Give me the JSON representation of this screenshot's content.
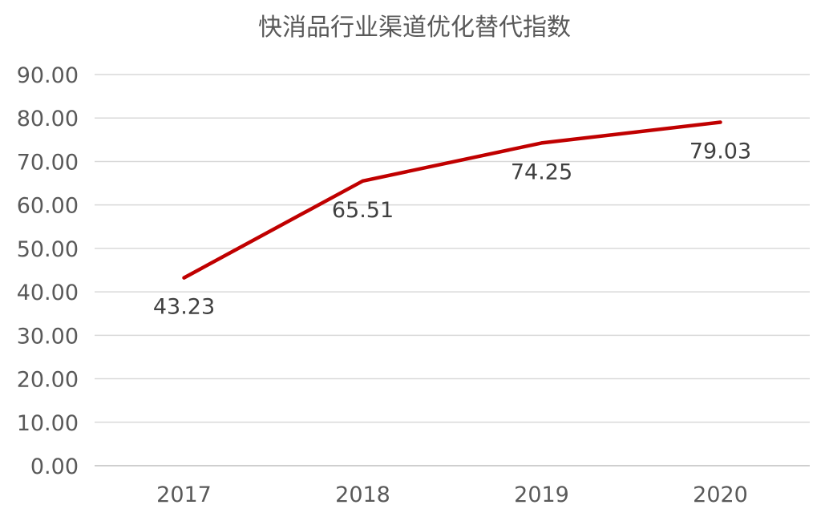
{
  "chart_data": {
    "type": "line",
    "title": "快消品行业渠道优化替代指数",
    "categories": [
      "2017",
      "2018",
      "2019",
      "2020"
    ],
    "series": [
      {
        "values": [
          43.23,
          65.51,
          74.25,
          79.03
        ],
        "color": "#c00000"
      }
    ],
    "data_labels": [
      "43.23",
      "65.51",
      "74.25",
      "79.03"
    ],
    "y_ticks": [
      "0.00",
      "10.00",
      "20.00",
      "30.00",
      "40.00",
      "50.00",
      "60.00",
      "70.00",
      "80.00",
      "90.00"
    ],
    "ylim": [
      0,
      90
    ],
    "grid": true,
    "legend": "none",
    "gridline_color": "#d9d9d9"
  }
}
